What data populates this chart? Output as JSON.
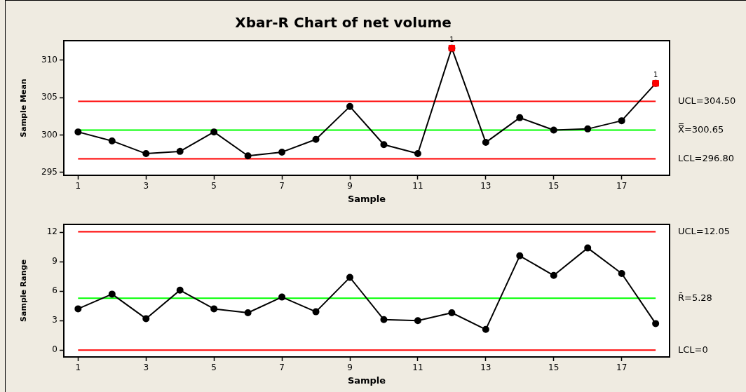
{
  "chart_data": [
    {
      "type": "line",
      "title": "Xbar-R Chart of net volume",
      "xlabel": "Sample",
      "ylabel": "Sample Mean",
      "marker": "circle",
      "x": [
        1,
        2,
        3,
        4,
        5,
        6,
        7,
        8,
        9,
        10,
        11,
        12,
        13,
        14,
        15,
        16,
        17,
        18
      ],
      "xlim": [
        0.58,
        18.41
      ],
      "xticks": [
        1,
        3,
        5,
        7,
        9,
        11,
        13,
        15,
        17
      ],
      "ylim": [
        294.6,
        312.6
      ],
      "yticks": [
        295,
        300,
        305,
        310
      ],
      "series": [
        {
          "color": "#000000",
          "values": [
            300.4,
            299.2,
            297.5,
            297.8,
            300.4,
            297.2,
            297.7,
            299.4,
            303.8,
            298.7,
            297.5,
            311.6,
            299.0,
            302.3,
            300.65,
            300.8,
            301.9,
            306.9
          ]
        },
        {
          "type": "scatter",
          "marker": "square",
          "color": "#ff0000",
          "x": [
            12,
            18
          ],
          "values": [
            311.6,
            306.9
          ]
        }
      ],
      "annotations": [
        {
          "text": "1",
          "x": 12,
          "y": 311.6
        },
        {
          "text": "1",
          "x": 18,
          "y": 306.9
        }
      ],
      "ref_lines": [
        {
          "axis": "y",
          "value": 304.5,
          "label": "UCL=304.50",
          "color": "#ff0000"
        },
        {
          "axis": "y",
          "value": 300.65,
          "label": "X̿=300.65",
          "color": "#00ff00"
        },
        {
          "axis": "y",
          "value": 296.8,
          "label": "LCL=296.80",
          "color": "#ff0000"
        }
      ]
    },
    {
      "type": "line",
      "xlabel": "Sample",
      "ylabel": "Sample Range",
      "marker": "circle",
      "x": [
        1,
        2,
        3,
        4,
        5,
        6,
        7,
        8,
        9,
        10,
        11,
        12,
        13,
        14,
        15,
        16,
        17,
        18
      ],
      "xlim": [
        0.58,
        18.41
      ],
      "xticks": [
        1,
        3,
        5,
        7,
        9,
        11,
        13,
        15,
        17
      ],
      "ylim": [
        -0.7,
        12.8
      ],
      "yticks": [
        0,
        3,
        6,
        9,
        12
      ],
      "series": [
        {
          "color": "#000000",
          "values": [
            4.2,
            5.7,
            3.2,
            6.1,
            4.2,
            3.8,
            5.4,
            3.9,
            7.4,
            3.1,
            3.0,
            3.8,
            2.1,
            9.6,
            7.6,
            10.4,
            7.8,
            2.7
          ]
        }
      ],
      "ref_lines": [
        {
          "axis": "y",
          "value": 12.05,
          "label": "UCL=12.05",
          "color": "#ff0000"
        },
        {
          "axis": "y",
          "value": 5.28,
          "label": "R̄=5.28",
          "color": "#00ff00"
        },
        {
          "axis": "y",
          "value": 0,
          "label": "LCL=0",
          "color": "#ff0000"
        }
      ]
    }
  ]
}
